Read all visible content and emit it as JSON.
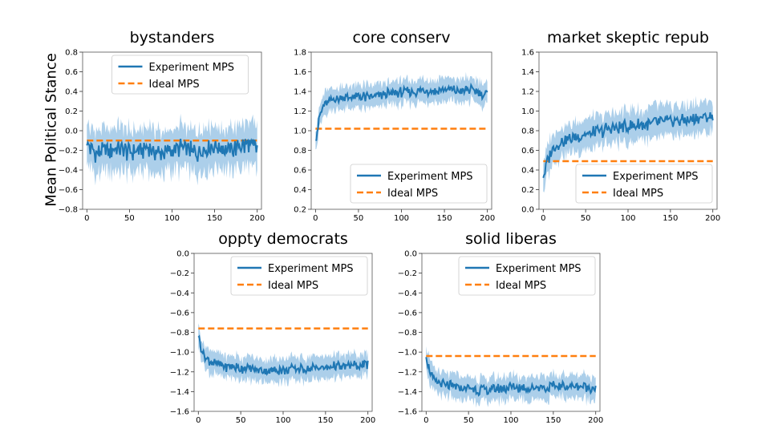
{
  "figure": {
    "shared_ylabel": "Mean Political Stance",
    "colors": {
      "experiment": "#1f77b4",
      "band": "#9ec7e6",
      "ideal": "#ff7f0e",
      "axis": "#000000"
    }
  },
  "chart_data": [
    {
      "type": "line",
      "title": "bystanders",
      "xlabel": "",
      "ylabel": "",
      "xlim": [
        -5,
        205
      ],
      "ylim": [
        -0.8,
        0.8
      ],
      "xticks": [
        0,
        50,
        100,
        150,
        200
      ],
      "yticks": [
        -0.8,
        -0.6,
        -0.4,
        -0.2,
        0.0,
        0.2,
        0.4,
        0.6,
        0.8
      ],
      "ytick_labels": [
        "−0.8",
        "−0.6",
        "−0.4",
        "−0.2",
        "0.0",
        "0.2",
        "0.4",
        "0.6",
        "0.8"
      ],
      "legend": {
        "placement": "top-center",
        "entries": [
          "Experiment MPS",
          "Ideal MPS"
        ]
      },
      "series": [
        {
          "name": "Experiment MPS",
          "style": "solid",
          "band": 0.22,
          "x": [
            0,
            10,
            20,
            30,
            40,
            50,
            60,
            70,
            80,
            90,
            100,
            110,
            120,
            130,
            140,
            150,
            160,
            170,
            180,
            190,
            200
          ],
          "values": [
            -0.15,
            -0.22,
            -0.21,
            -0.19,
            -0.2,
            -0.22,
            -0.2,
            -0.18,
            -0.21,
            -0.23,
            -0.2,
            -0.17,
            -0.2,
            -0.22,
            -0.17,
            -0.15,
            -0.18,
            -0.2,
            -0.16,
            -0.15,
            -0.18
          ]
        },
        {
          "name": "Ideal MPS",
          "style": "dashed",
          "x": [
            0,
            200
          ],
          "values": [
            -0.1,
            -0.1
          ]
        }
      ]
    },
    {
      "type": "line",
      "title": "core conserv",
      "xlabel": "",
      "ylabel": "",
      "xlim": [
        -5,
        205
      ],
      "ylim": [
        0.2,
        1.8
      ],
      "xticks": [
        0,
        50,
        100,
        150,
        200
      ],
      "yticks": [
        0.2,
        0.4,
        0.6,
        0.8,
        1.0,
        1.2,
        1.4,
        1.6,
        1.8
      ],
      "ytick_labels": [
        "0.2",
        "0.4",
        "0.6",
        "0.8",
        "1.0",
        "1.2",
        "1.4",
        "1.6",
        "1.8"
      ],
      "legend": {
        "placement": "bottom-right",
        "entries": [
          "Experiment MPS",
          "Ideal MPS"
        ]
      },
      "series": [
        {
          "name": "Experiment MPS",
          "style": "solid",
          "band": 0.12,
          "x": [
            0,
            5,
            10,
            20,
            30,
            40,
            50,
            60,
            70,
            80,
            90,
            100,
            110,
            120,
            130,
            140,
            150,
            160,
            170,
            180,
            190,
            200
          ],
          "values": [
            0.9,
            1.15,
            1.26,
            1.32,
            1.34,
            1.33,
            1.35,
            1.34,
            1.35,
            1.37,
            1.38,
            1.39,
            1.4,
            1.4,
            1.41,
            1.4,
            1.42,
            1.41,
            1.4,
            1.42,
            1.39,
            1.37
          ]
        },
        {
          "name": "Ideal MPS",
          "style": "dashed",
          "x": [
            0,
            200
          ],
          "values": [
            1.02,
            1.02
          ]
        }
      ]
    },
    {
      "type": "line",
      "title": "market skeptic repub",
      "xlabel": "",
      "ylabel": "",
      "xlim": [
        -5,
        205
      ],
      "ylim": [
        0.0,
        1.6
      ],
      "xticks": [
        0,
        50,
        100,
        150,
        200
      ],
      "yticks": [
        0.0,
        0.2,
        0.4,
        0.6,
        0.8,
        1.0,
        1.2,
        1.4,
        1.6
      ],
      "ytick_labels": [
        "0.0",
        "0.2",
        "0.4",
        "0.6",
        "0.8",
        "1.0",
        "1.2",
        "1.4",
        "1.6"
      ],
      "legend": {
        "placement": "bottom-right",
        "entries": [
          "Experiment MPS",
          "Ideal MPS"
        ]
      },
      "series": [
        {
          "name": "Experiment MPS",
          "style": "solid",
          "band": 0.16,
          "x": [
            0,
            5,
            10,
            20,
            30,
            40,
            50,
            60,
            70,
            80,
            90,
            100,
            110,
            120,
            130,
            140,
            150,
            160,
            170,
            180,
            190,
            200
          ],
          "values": [
            0.32,
            0.5,
            0.6,
            0.68,
            0.72,
            0.74,
            0.76,
            0.78,
            0.8,
            0.82,
            0.83,
            0.84,
            0.85,
            0.86,
            0.88,
            0.89,
            0.9,
            0.91,
            0.9,
            0.92,
            0.93,
            0.94
          ]
        },
        {
          "name": "Ideal MPS",
          "style": "dashed",
          "x": [
            0,
            200
          ],
          "values": [
            0.49,
            0.49
          ]
        }
      ]
    },
    {
      "type": "line",
      "title": "oppty democrats",
      "xlabel": "",
      "ylabel": "",
      "xlim": [
        -5,
        205
      ],
      "ylim": [
        -1.6,
        0.0
      ],
      "xticks": [
        0,
        50,
        100,
        150,
        200
      ],
      "yticks": [
        -1.6,
        -1.4,
        -1.2,
        -1.0,
        -0.8,
        -0.6,
        -0.4,
        -0.2,
        0.0
      ],
      "ytick_labels": [
        "−1.6",
        "−1.4",
        "−1.2",
        "−1.0",
        "−0.8",
        "−0.6",
        "−0.4",
        "−0.2",
        "0.0"
      ],
      "legend": {
        "placement": "top-right",
        "entries": [
          "Experiment MPS",
          "Ideal MPS"
        ]
      },
      "series": [
        {
          "name": "Experiment MPS",
          "style": "solid",
          "band": 0.12,
          "x": [
            0,
            5,
            10,
            20,
            30,
            40,
            50,
            60,
            70,
            80,
            90,
            100,
            110,
            120,
            130,
            140,
            150,
            160,
            170,
            180,
            190,
            200
          ],
          "values": [
            -0.85,
            -1.0,
            -1.08,
            -1.12,
            -1.14,
            -1.15,
            -1.16,
            -1.17,
            -1.18,
            -1.19,
            -1.18,
            -1.18,
            -1.17,
            -1.16,
            -1.17,
            -1.15,
            -1.16,
            -1.14,
            -1.15,
            -1.13,
            -1.14,
            -1.12
          ]
        },
        {
          "name": "Ideal MPS",
          "style": "dashed",
          "x": [
            0,
            200
          ],
          "values": [
            -0.76,
            -0.76
          ]
        }
      ]
    },
    {
      "type": "line",
      "title": "solid liberas",
      "xlabel": "",
      "ylabel": "",
      "xlim": [
        -5,
        205
      ],
      "ylim": [
        -1.6,
        0.0
      ],
      "xticks": [
        0,
        50,
        100,
        150,
        200
      ],
      "yticks": [
        -1.6,
        -1.4,
        -1.2,
        -1.0,
        -0.8,
        -0.6,
        -0.4,
        -0.2,
        0.0
      ],
      "ytick_labels": [
        "−1.6",
        "−1.4",
        "−1.2",
        "−1.0",
        "−0.8",
        "−0.6",
        "−0.4",
        "−0.2",
        "0.0"
      ],
      "legend": {
        "placement": "top-right",
        "entries": [
          "Experiment MPS",
          "Ideal MPS"
        ]
      },
      "series": [
        {
          "name": "Experiment MPS",
          "style": "solid",
          "band": 0.12,
          "x": [
            0,
            5,
            10,
            20,
            30,
            40,
            50,
            60,
            70,
            80,
            90,
            100,
            110,
            120,
            130,
            140,
            150,
            160,
            170,
            180,
            190,
            200
          ],
          "values": [
            -1.05,
            -1.22,
            -1.3,
            -1.33,
            -1.35,
            -1.36,
            -1.37,
            -1.38,
            -1.39,
            -1.38,
            -1.37,
            -1.36,
            -1.36,
            -1.37,
            -1.35,
            -1.36,
            -1.35,
            -1.34,
            -1.35,
            -1.34,
            -1.35,
            -1.36
          ]
        },
        {
          "name": "Ideal MPS",
          "style": "dashed",
          "x": [
            0,
            200
          ],
          "values": [
            -1.04,
            -1.04
          ]
        }
      ]
    }
  ]
}
